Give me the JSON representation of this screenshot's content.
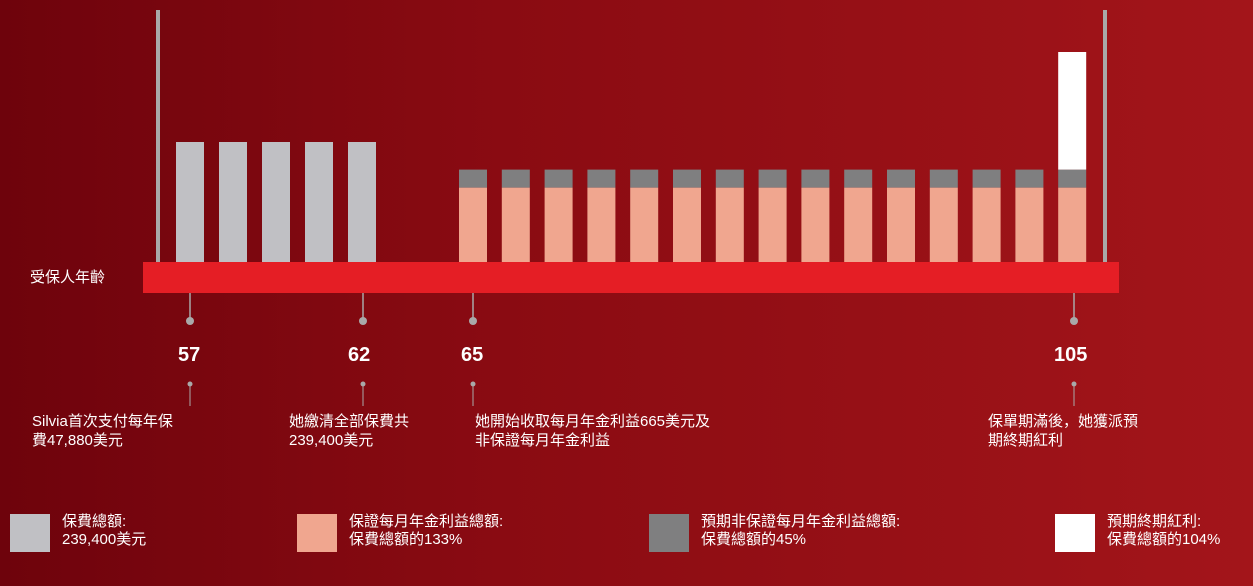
{
  "chart_data": {
    "type": "bar",
    "axis_title": "受保人年齡",
    "ages_shown": [
      "57",
      "62",
      "65",
      "105"
    ],
    "premium_bars": {
      "count": 5,
      "value": 1.0,
      "color": "#c0c0c4"
    },
    "payout_bars": {
      "count": 15,
      "guaranteed_value": 0.62,
      "non_guaranteed_value": 0.15,
      "guaranteed_color": "#f0a68f",
      "non_guaranteed_color": "#7f7f80"
    },
    "terminal_bonus": {
      "value": 0.98,
      "color": "#ffffff"
    },
    "axis_color": "#e51e25",
    "marker_color": "#a9a9a9"
  },
  "annotations": {
    "a57": {
      "age": "57",
      "text": "Silvia首次支付每年保\n費47,880美元"
    },
    "a62": {
      "age": "62",
      "text": "她繳清全部保費共\n239,400美元"
    },
    "a65": {
      "age": "65",
      "text": "她開始收取每月年金利益665美元及\n非保證每月年金利益"
    },
    "a105": {
      "age": "105",
      "text": "保單期滿後，她獲派預\n期終期紅利"
    }
  },
  "legend": [
    {
      "label": "保費總額:",
      "sub": "239,400美元",
      "color": "#c0c0c4"
    },
    {
      "label": "保證每月年金利益總額:",
      "sub": "保費總額的133%",
      "color": "#f0a68f"
    },
    {
      "label": "預期非保證每月年金利益總額:",
      "sub": "保費總額的45%",
      "color": "#7f7f80"
    },
    {
      "label": "預期終期紅利:",
      "sub": "保費總額的104%",
      "color": "#ffffff"
    }
  ]
}
